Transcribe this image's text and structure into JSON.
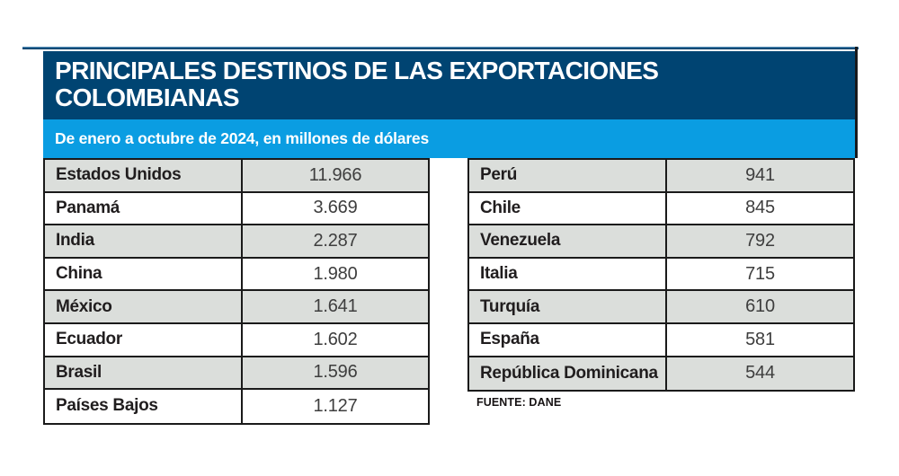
{
  "header": {
    "title_line1": "PRINCIPALES DESTINOS DE LAS EXPORTACIONES",
    "title_line2": "COLOMBIANAS",
    "subtitle": "De enero a octubre de 2024, en millones de dólares"
  },
  "source": "FUENTE: DANE",
  "colors": {
    "header_navy": "#004472",
    "band_blue": "#0a9de2",
    "row_gray": "#dbdedb",
    "row_white": "#ffffff",
    "border_black": "#1a1a1a"
  },
  "chart_data": {
    "type": "table",
    "title": "PRINCIPALES DESTINOS DE LAS EXPORTACIONES COLOMBIANAS",
    "subtitle": "De enero a octubre de 2024, en millones de dólares",
    "source": "FUENTE: DANE",
    "left_table": {
      "rows": [
        {
          "country": "Estados Unidos",
          "value_display": "11.966",
          "value": 11966
        },
        {
          "country": "Panamá",
          "value_display": "3.669",
          "value": 3669
        },
        {
          "country": "India",
          "value_display": "2.287",
          "value": 2287
        },
        {
          "country": "China",
          "value_display": "1.980",
          "value": 1980
        },
        {
          "country": "México",
          "value_display": "1.641",
          "value": 1641
        },
        {
          "country": "Ecuador",
          "value_display": "1.602",
          "value": 1602
        },
        {
          "country": "Brasil",
          "value_display": "1.596",
          "value": 1596
        },
        {
          "country": "Países Bajos",
          "value_display": "1.127",
          "value": 1127
        }
      ]
    },
    "right_table": {
      "rows": [
        {
          "country": "Perú",
          "value_display": "941",
          "value": 941
        },
        {
          "country": "Chile",
          "value_display": "845",
          "value": 845
        },
        {
          "country": "Venezuela",
          "value_display": "792",
          "value": 792
        },
        {
          "country": "Italia",
          "value_display": "715",
          "value": 715
        },
        {
          "country": "Turquía",
          "value_display": "610",
          "value": 610
        },
        {
          "country": "España",
          "value_display": "581",
          "value": 581
        },
        {
          "country": "República Dominicana",
          "value_display": "544",
          "value": 544
        }
      ]
    }
  }
}
